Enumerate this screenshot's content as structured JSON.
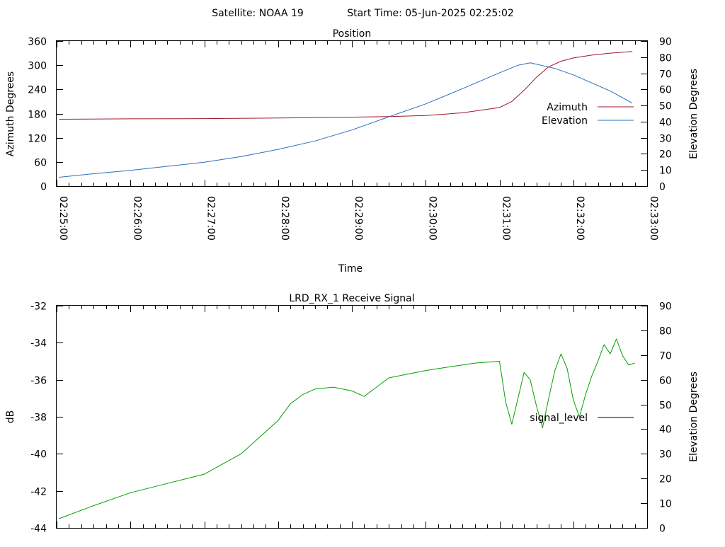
{
  "header": {
    "satellite_label": "Satellite: NOAA 19",
    "start_time_label": "Start Time: 05-Jun-2025 02:25:02"
  },
  "chart_data": [
    {
      "type": "line",
      "title": "Position",
      "xlabel": "Time",
      "ylabel": "Azimuth Degrees",
      "y2label": "Elevation Degrees",
      "xlim": [
        "02:25:00",
        "02:33:00"
      ],
      "x_ticks": [
        "02:25:00",
        "02:26:00",
        "02:27:00",
        "02:28:00",
        "02:29:00",
        "02:30:00",
        "02:31:00",
        "02:32:00",
        "02:33:00"
      ],
      "ylim": [
        0,
        360
      ],
      "y_ticks": [
        "0",
        "60",
        "120",
        "180",
        "240",
        "300",
        "360"
      ],
      "y2lim": [
        0,
        90
      ],
      "y2_ticks": [
        "0",
        "10",
        "20",
        "30",
        "40",
        "50",
        "60",
        "70",
        "80",
        "90"
      ],
      "legend_position": "right",
      "grid": false,
      "series": [
        {
          "name": "Azimuth",
          "axis": "y",
          "color": "#a0182a",
          "x": [
            "02:25:02",
            "02:26:00",
            "02:27:00",
            "02:28:00",
            "02:29:00",
            "02:29:30",
            "02:30:00",
            "02:30:30",
            "02:31:00",
            "02:31:10",
            "02:31:20",
            "02:31:30",
            "02:31:40",
            "02:31:50",
            "02:32:00",
            "02:32:15",
            "02:32:30",
            "02:32:48"
          ],
          "values": [
            166,
            167,
            167.5,
            169,
            171,
            172.5,
            175,
            182,
            195,
            210,
            238,
            270,
            296,
            310,
            318,
            325,
            330,
            334
          ]
        },
        {
          "name": "Elevation",
          "axis": "y2",
          "color": "#2a6ebb",
          "x": [
            "02:25:02",
            "02:25:30",
            "02:26:00",
            "02:26:30",
            "02:27:00",
            "02:27:30",
            "02:28:00",
            "02:28:30",
            "02:29:00",
            "02:29:30",
            "02:30:00",
            "02:30:30",
            "02:31:00",
            "02:31:15",
            "02:31:25",
            "02:31:45",
            "02:32:00",
            "02:32:30",
            "02:32:48"
          ],
          "values": [
            5.5,
            7.7,
            9.8,
            12.3,
            14.8,
            18.3,
            22.8,
            28.0,
            34.8,
            43.0,
            51.0,
            60.5,
            70.3,
            75.0,
            76.5,
            73.0,
            69.0,
            59.0,
            51.5
          ]
        }
      ]
    },
    {
      "type": "line",
      "title": "LRD_RX_1 Receive Signal",
      "xlabel": "",
      "ylabel": "dB",
      "y2label": "Elevation Degrees",
      "ylim": [
        -44,
        -32
      ],
      "y_ticks": [
        "-32",
        "-34",
        "-36",
        "-38",
        "-40",
        "-42",
        "-44"
      ],
      "y2lim": [
        0,
        90
      ],
      "y2_ticks": [
        "0",
        "10",
        "20",
        "30",
        "40",
        "50",
        "60",
        "70",
        "80",
        "90"
      ],
      "legend_position": "right",
      "grid": false,
      "series": [
        {
          "name": "signal_level",
          "axis": "y",
          "color": "#00a000",
          "x": [
            "02:25:02",
            "02:25:30",
            "02:26:00",
            "02:26:30",
            "02:27:00",
            "02:27:30",
            "02:28:00",
            "02:28:10",
            "02:28:20",
            "02:28:30",
            "02:28:45",
            "02:29:00",
            "02:29:10",
            "02:29:20",
            "02:29:30",
            "02:30:00",
            "02:30:20",
            "02:30:40",
            "02:31:00",
            "02:31:05",
            "02:31:10",
            "02:31:15",
            "02:31:20",
            "02:31:25",
            "02:31:30",
            "02:31:35",
            "02:31:40",
            "02:31:45",
            "02:31:50",
            "02:31:55",
            "02:32:00",
            "02:32:05",
            "02:32:10",
            "02:32:15",
            "02:32:20",
            "02:32:25",
            "02:32:30",
            "02:32:35",
            "02:32:40",
            "02:32:45",
            "02:32:50"
          ],
          "values": [
            -43.5,
            -42.8,
            -42.1,
            -41.6,
            -41.1,
            -40.0,
            -38.2,
            -37.3,
            -36.8,
            -36.5,
            -36.4,
            -36.6,
            -36.9,
            -36.4,
            -35.9,
            -35.5,
            -35.3,
            -35.1,
            -35.0,
            -37.2,
            -38.4,
            -37.0,
            -35.6,
            -36.0,
            -37.4,
            -38.6,
            -37.0,
            -35.5,
            -34.6,
            -35.4,
            -37.1,
            -38.0,
            -36.8,
            -35.8,
            -35.0,
            -34.1,
            -34.6,
            -33.8,
            -34.7,
            -35.2,
            -35.1
          ]
        }
      ]
    }
  ]
}
